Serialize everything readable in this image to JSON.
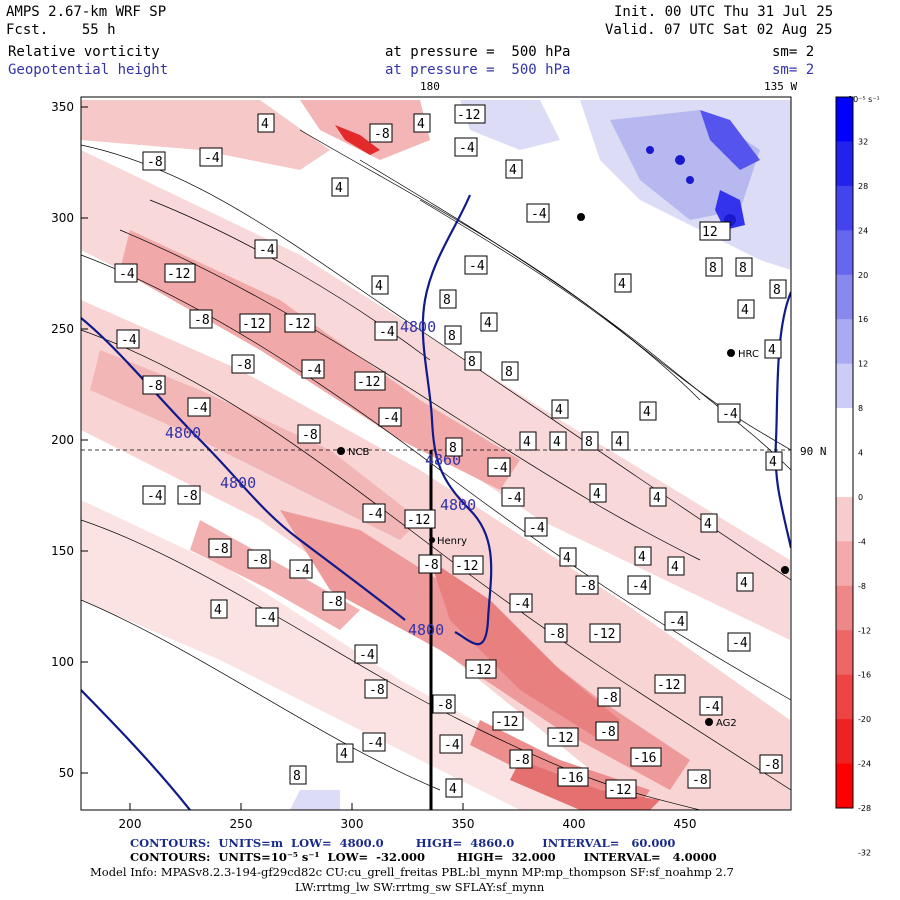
{
  "header": {
    "model": "AMPS 2.67-km WRF SP",
    "forecast": "Fcst.    55 h",
    "init": "Init. 00 UTC Thu 31 Jul 25",
    "valid": "Valid. 07 UTC Sat 02 Aug 25",
    "field1": "Relative vorticity",
    "field1_level": "at pressure =  500 hPa",
    "field1_sm": "sm= 2",
    "field2": "Geopotential height",
    "field2_level": "at pressure =  500 hPa",
    "field2_sm": "sm= 2",
    "lon_label_top1": "180",
    "lon_label_top2": "135 W",
    "lat_label_right": "90 N"
  },
  "axes": {
    "x_ticks": [
      "200",
      "250",
      "300",
      "350",
      "400",
      "450"
    ],
    "y_ticks": [
      "50",
      "100",
      "150",
      "200",
      "250",
      "300",
      "350"
    ]
  },
  "colorbar": {
    "unit_label": "10⁻⁵ s⁻¹",
    "ticks": [
      "32",
      "28",
      "24",
      "20",
      "16",
      "12",
      "8",
      "4",
      "0",
      "-4",
      "-8",
      "-12",
      "-16",
      "-20",
      "-24",
      "-28",
      "-32"
    ],
    "colors": [
      "#0000ff",
      "#2222ee",
      "#4444ee",
      "#6666ee",
      "#8888ee",
      "#aaaaf2",
      "#ccccf6",
      "#ffffff",
      "#ffffff",
      "#f6cccc",
      "#f2aaaa",
      "#ee8888",
      "#ee6666",
      "#ee4444",
      "#ee2222",
      "#ff0000"
    ]
  },
  "stations": [
    {
      "label": "NCB"
    },
    {
      "label": "Henry"
    },
    {
      "label": "HRC"
    },
    {
      "label": "AG2"
    }
  ],
  "height_contour_labels": [
    "4800",
    "4800",
    "4800",
    "4800",
    "4860",
    "4800"
  ],
  "vorticity_labels": [
    "-4",
    "-8",
    "-12",
    "4",
    "8",
    "12",
    "-16"
  ],
  "footer": {
    "line1": "CONTOURS:  UNITS=m  LOW=  4800.0        HIGH=  4860.0       INTERVAL=   60.000",
    "line2": "CONTOURS:  UNITS=10⁻⁵ s⁻¹  LOW=  -32.000        HIGH=  32.000       INTERVAL=   4.0000",
    "line3": "Model Info: MPASv8.2.3-194-gf29cd82c CU:cu_grell_freitas PBL:bl_mynn MP:mp_thompson SF:sf_noahmp 2.7",
    "line4": "LW:rrtmg_lw SW:rrtmg_sw SFLAY:sf_mynn"
  }
}
